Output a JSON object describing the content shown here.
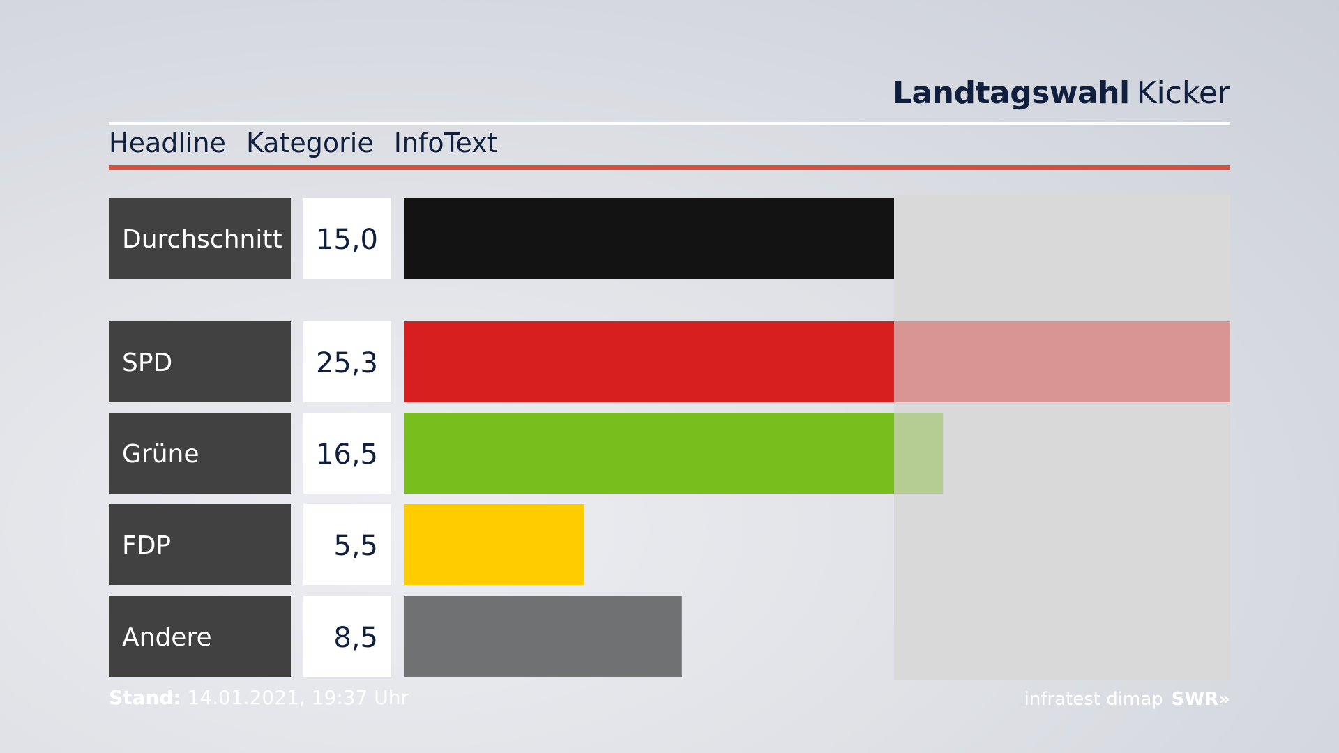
{
  "header": {
    "title_bold": "Landtagswahl",
    "title_regular": "Kicker"
  },
  "tabs": [
    "Headline",
    "Kategorie",
    "InfoText"
  ],
  "chart_data": {
    "type": "bar",
    "orientation": "horizontal",
    "categories": [
      "Durchschnitt",
      "SPD",
      "Grüne",
      "FDP",
      "Andere"
    ],
    "values": [
      15.0,
      25.3,
      16.5,
      5.5,
      8.5
    ],
    "value_labels": [
      "15,0",
      "25,3",
      "16,5",
      "5,5",
      "8,5"
    ],
    "reference_value": 15.0,
    "colors": [
      "#131313",
      "#d71f1f",
      "#78be1c",
      "#ffcc00",
      "#707173"
    ],
    "light_colors": [
      "#131313",
      "#d89594",
      "#b5cd92",
      "#ffcc00",
      "#707173"
    ]
  },
  "footer": {
    "stand_label": "Stand:",
    "timestamp": "14.01.2021, 19:37 Uhr",
    "source": "infratest dimap",
    "broadcaster": "SWR»"
  },
  "colors": {
    "accent": "#d2513f",
    "text_dark": "#0f1f3d",
    "label_bg": "#414141"
  }
}
